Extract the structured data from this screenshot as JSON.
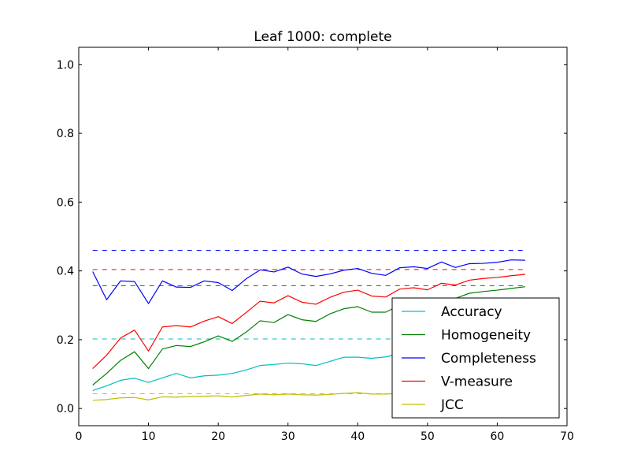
{
  "chart_data": {
    "type": "line",
    "title": "Leaf 1000: complete",
    "xlabel": "",
    "ylabel": "",
    "xlim": [
      0,
      70
    ],
    "ylim": [
      -0.05,
      1.05
    ],
    "xticks": [
      0,
      10,
      20,
      30,
      40,
      50,
      60,
      70
    ],
    "yticks": [
      0.0,
      0.2,
      0.4,
      0.6,
      0.8,
      1.0
    ],
    "xtick_labels": [
      "0",
      "10",
      "20",
      "30",
      "40",
      "50",
      "60",
      "70"
    ],
    "ytick_labels": [
      "0.0",
      "0.2",
      "0.4",
      "0.6",
      "0.8",
      "1.0"
    ],
    "grid": false,
    "legend_position": "lower-right",
    "x": [
      2,
      4,
      6,
      8,
      10,
      12,
      14,
      16,
      18,
      20,
      22,
      24,
      26,
      28,
      30,
      32,
      34,
      36,
      38,
      40,
      42,
      44,
      46,
      48,
      50,
      52,
      54,
      56,
      58,
      60,
      62,
      64
    ],
    "series": [
      {
        "name": "Accuracy",
        "color": "#00bfbf",
        "values": [
          0.052,
          0.066,
          0.082,
          0.088,
          0.076,
          0.089,
          0.102,
          0.089,
          0.095,
          0.097,
          0.102,
          0.112,
          0.125,
          0.128,
          0.132,
          0.13,
          0.125,
          0.137,
          0.149,
          0.149,
          0.146,
          0.15,
          0.16,
          0.165,
          0.17,
          0.175,
          0.18,
          0.185,
          0.19,
          0.195,
          0.2,
          0.205
        ],
        "baseline": 0.202
      },
      {
        "name": "Homogeneity",
        "color": "#008000",
        "values": [
          0.068,
          0.102,
          0.14,
          0.165,
          0.116,
          0.173,
          0.183,
          0.18,
          0.194,
          0.211,
          0.195,
          0.222,
          0.255,
          0.25,
          0.273,
          0.258,
          0.253,
          0.275,
          0.29,
          0.296,
          0.28,
          0.28,
          0.3,
          0.305,
          0.31,
          0.315,
          0.32,
          0.335,
          0.34,
          0.344,
          0.349,
          0.354
        ],
        "baseline": 0.357
      },
      {
        "name": "Completeness",
        "color": "#0000ff",
        "values": [
          0.398,
          0.316,
          0.371,
          0.369,
          0.305,
          0.371,
          0.353,
          0.352,
          0.371,
          0.366,
          0.343,
          0.377,
          0.403,
          0.397,
          0.411,
          0.391,
          0.384,
          0.391,
          0.402,
          0.407,
          0.393,
          0.387,
          0.409,
          0.412,
          0.407,
          0.426,
          0.41,
          0.421,
          0.422,
          0.425,
          0.432,
          0.431
        ],
        "baseline": 0.46
      },
      {
        "name": "V-measure",
        "color": "#ff0000",
        "values": [
          0.116,
          0.155,
          0.205,
          0.228,
          0.167,
          0.237,
          0.241,
          0.237,
          0.254,
          0.267,
          0.247,
          0.279,
          0.312,
          0.307,
          0.328,
          0.309,
          0.303,
          0.323,
          0.338,
          0.344,
          0.327,
          0.324,
          0.347,
          0.351,
          0.345,
          0.364,
          0.359,
          0.373,
          0.378,
          0.381,
          0.386,
          0.39
        ],
        "baseline": 0.404
      },
      {
        "name": "JCC",
        "color": "#bfbf00",
        "values": [
          0.024,
          0.026,
          0.031,
          0.032,
          0.025,
          0.034,
          0.033,
          0.035,
          0.036,
          0.037,
          0.034,
          0.038,
          0.042,
          0.04,
          0.042,
          0.04,
          0.039,
          0.041,
          0.044,
          0.046,
          0.042,
          0.042,
          0.044,
          0.045,
          0.044,
          0.046,
          0.045,
          0.046,
          0.047,
          0.047,
          0.048,
          0.048
        ],
        "baseline": 0.043
      }
    ]
  }
}
